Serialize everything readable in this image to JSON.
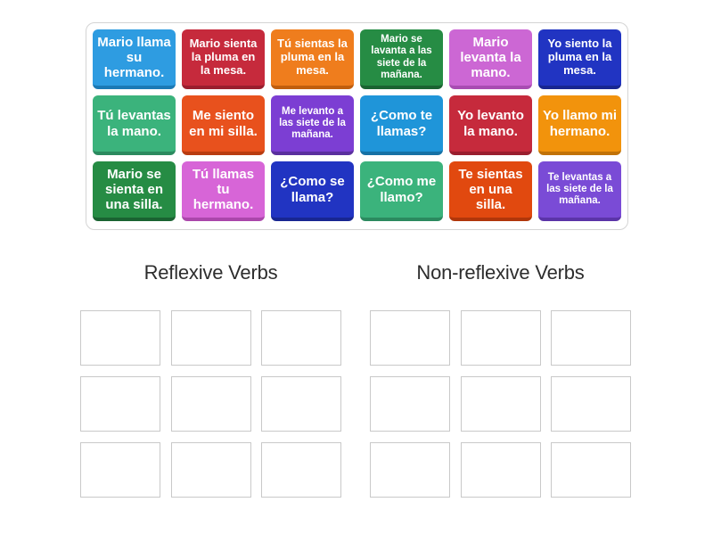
{
  "board": {
    "tiles": [
      {
        "text": "Mario llama su hermano.",
        "color": "#2e9ce1",
        "edge": "#1b79b5",
        "size": "l"
      },
      {
        "text": "Mario sienta la pluma en la mesa.",
        "color": "#c62a3c",
        "edge": "#9a1e2e",
        "size": "m"
      },
      {
        "text": "Tú sientas la pluma en la mesa.",
        "color": "#ef7d1d",
        "edge": "#c05e0e",
        "size": "m"
      },
      {
        "text": "Mario se lavanta a las siete de la mañana.",
        "color": "#268c44",
        "edge": "#1a6331",
        "size": "s"
      },
      {
        "text": "Mario levanta la mano.",
        "color": "#cc67d4",
        "edge": "#a84cb2",
        "size": "l"
      },
      {
        "text": "Yo siento la pluma en la mesa.",
        "color": "#2134c2",
        "edge": "#182691",
        "size": "m"
      },
      {
        "text": "Tú levantas la mano.",
        "color": "#3bb37c",
        "edge": "#2b8a5f",
        "size": "l"
      },
      {
        "text": "Me siento en mi silla.",
        "color": "#e8511d",
        "edge": "#b93c10",
        "size": "l"
      },
      {
        "text": "Me levanto a las siete de la mañana.",
        "color": "#7c3ed3",
        "edge": "#5a2f9e",
        "size": "s"
      },
      {
        "text": "¿Como te llamas?",
        "color": "#1f95d9",
        "edge": "#1671a5",
        "size": "l"
      },
      {
        "text": "Yo levanto la mano.",
        "color": "#c62a3c",
        "edge": "#9a1e2e",
        "size": "l"
      },
      {
        "text": "Yo llamo mi hermano.",
        "color": "#f2930c",
        "edge": "#c17207",
        "size": "l"
      },
      {
        "text": "Mario se sienta en una silla.",
        "color": "#268c44",
        "edge": "#1a6331",
        "size": "l"
      },
      {
        "text": "Tú llamas tu hermano.",
        "color": "#d765d7",
        "edge": "#ab47ab",
        "size": "l"
      },
      {
        "text": "¿Como se llama?",
        "color": "#2134c2",
        "edge": "#182691",
        "size": "l"
      },
      {
        "text": "¿Como me llamo?",
        "color": "#3bb37c",
        "edge": "#2b8a5f",
        "size": "l"
      },
      {
        "text": "Te sientas en una silla.",
        "color": "#e1490f",
        "edge": "#b0360a",
        "size": "l"
      },
      {
        "text": "Te levantas a las siete de la mañana.",
        "color": "#7a4bd6",
        "edge": "#5b34a8",
        "size": "s"
      }
    ]
  },
  "groups": [
    {
      "title": "Reflexive Verbs",
      "slots": 9
    },
    {
      "title": "Non-reflexive Verbs",
      "slots": 9
    }
  ]
}
